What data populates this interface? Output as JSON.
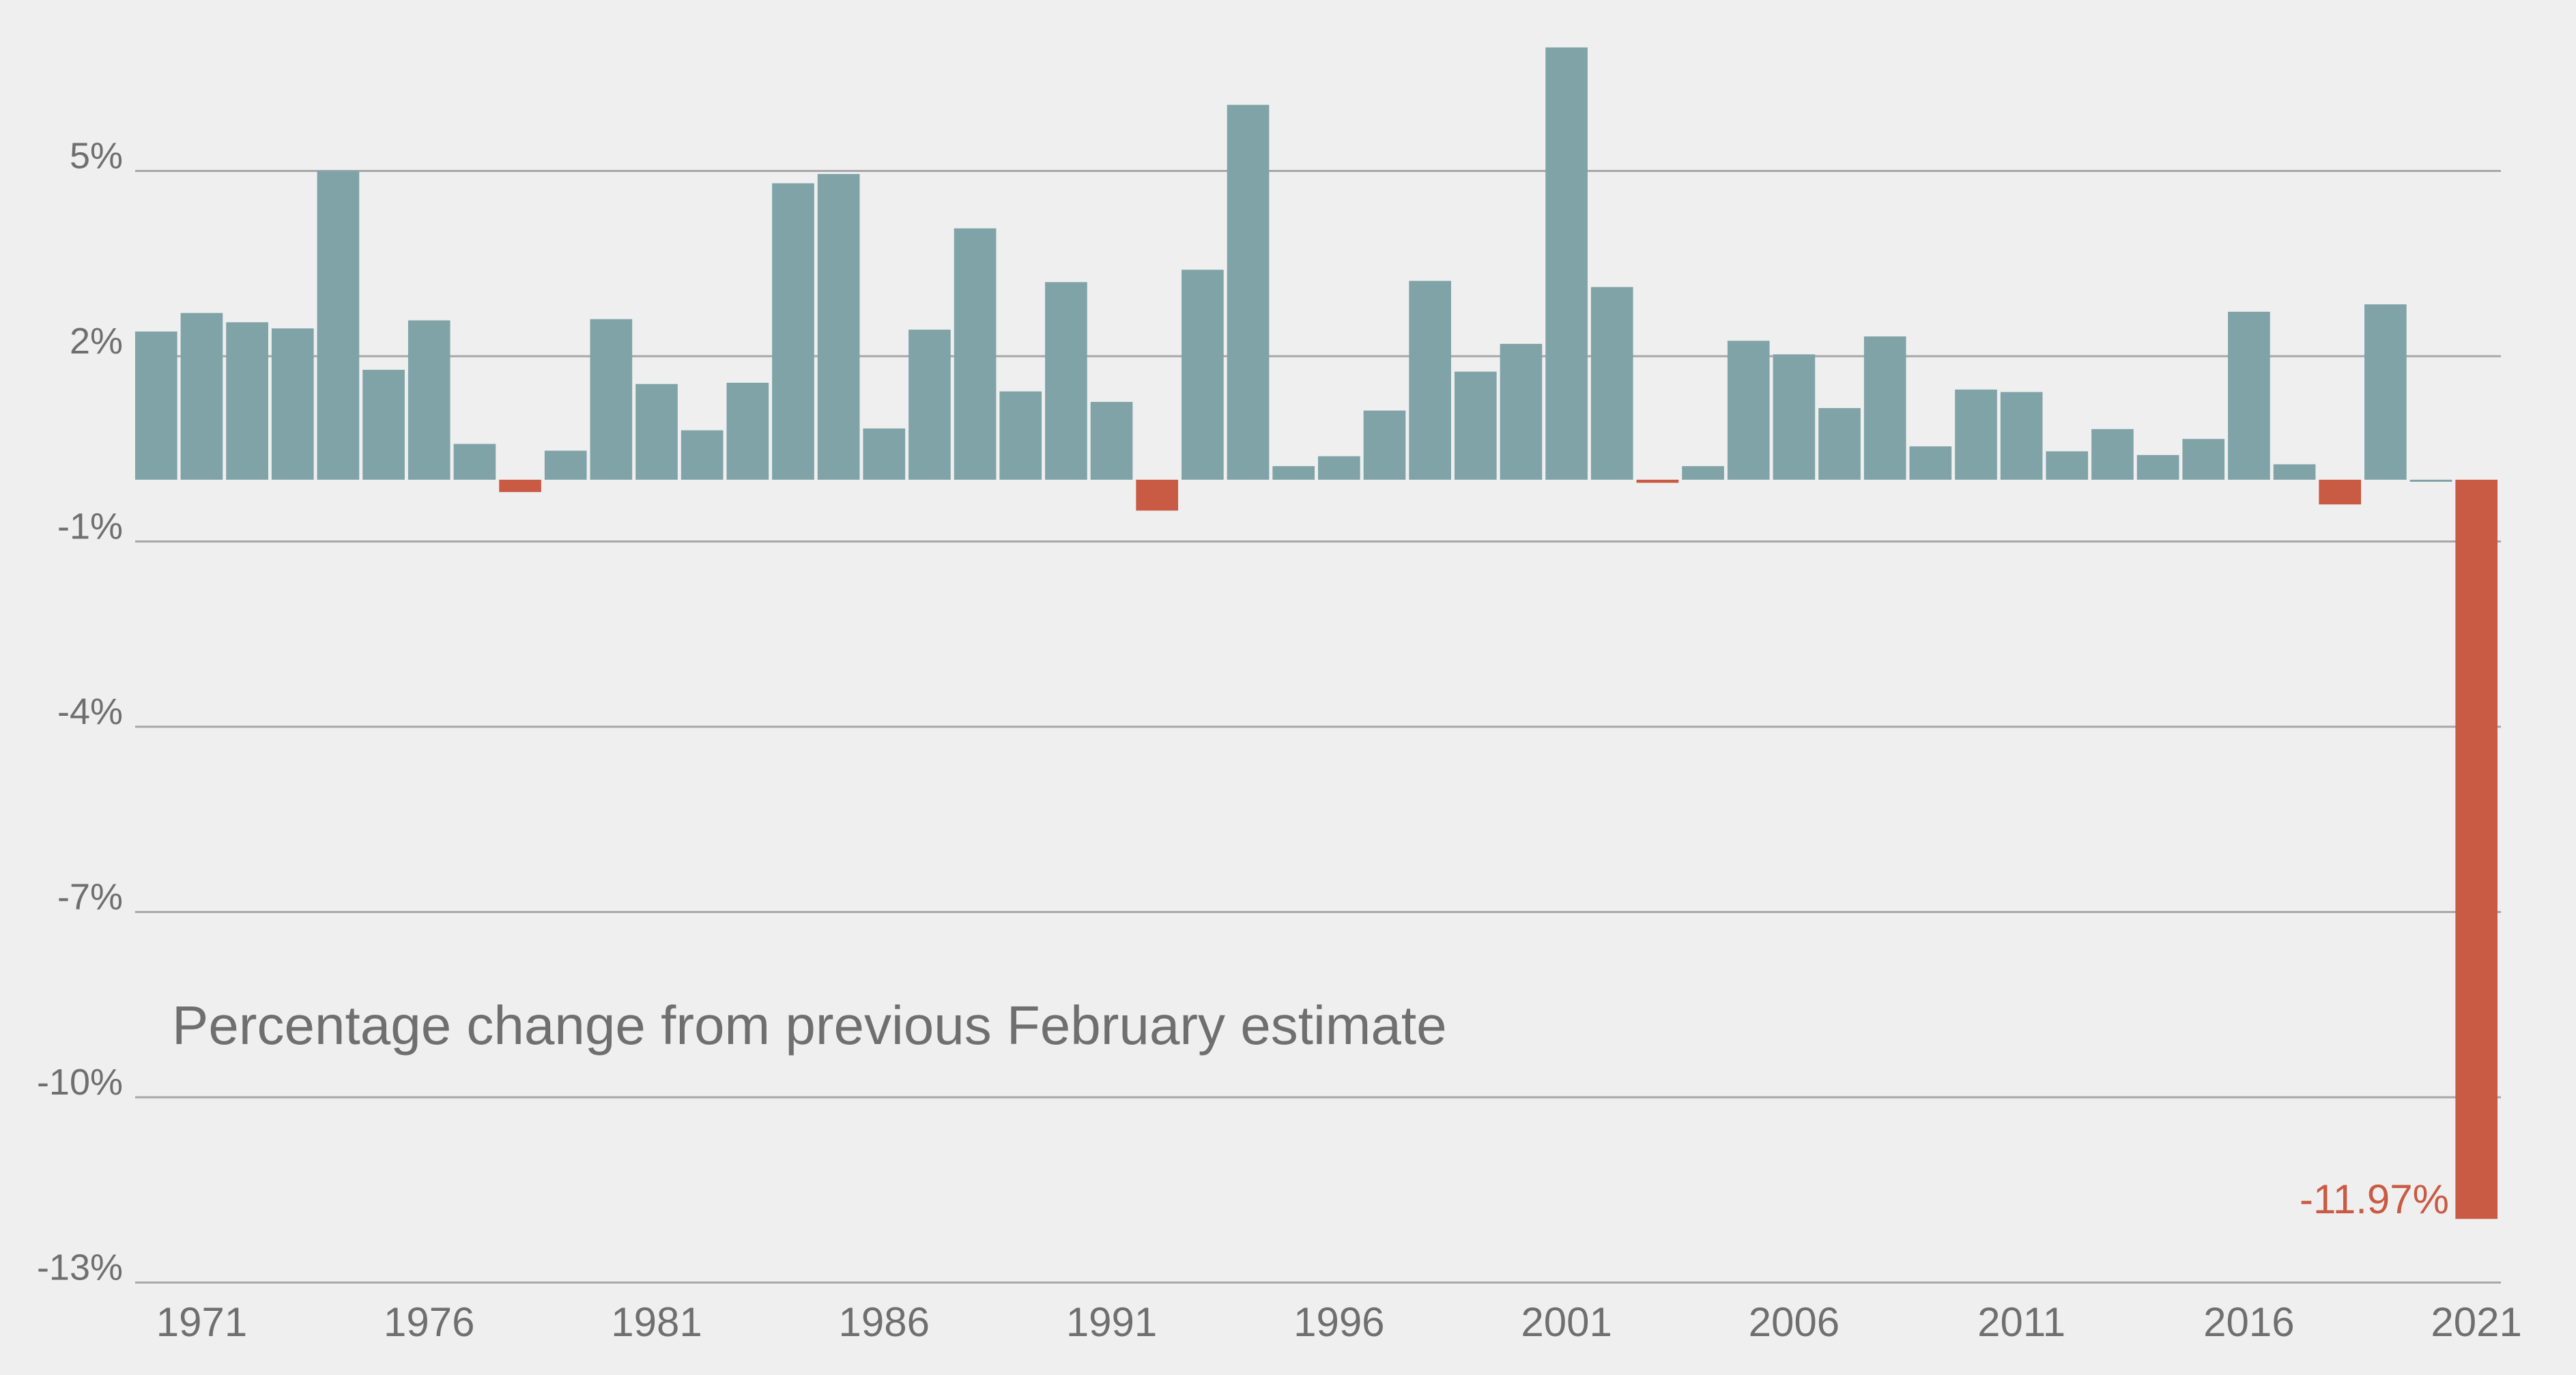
{
  "chart_data": {
    "type": "bar",
    "title": "",
    "annotation": "Percentage change from previous February estimate",
    "xlabel": "",
    "ylabel": "",
    "ylim": [
      -13,
      8
    ],
    "y_ticks": [
      5,
      2,
      -1,
      -4,
      -7,
      -10,
      -13
    ],
    "y_tick_labels": [
      "5%",
      "2%",
      "-1%",
      "-4%",
      "-7%",
      "-10%",
      "-13%"
    ],
    "x_tick_labels": [
      "1971",
      "1976",
      "1981",
      "1986",
      "1991",
      "1996",
      "2001",
      "2006",
      "2011",
      "2016",
      "2021"
    ],
    "x_tick_years": [
      1971,
      1976,
      1981,
      1986,
      1991,
      1996,
      2001,
      2006,
      2011,
      2016,
      2021
    ],
    "grid": "horizontal",
    "categories": [
      1970,
      1971,
      1972,
      1973,
      1974,
      1975,
      1976,
      1977,
      1978,
      1979,
      1980,
      1981,
      1982,
      1983,
      1984,
      1985,
      1986,
      1987,
      1988,
      1989,
      1990,
      1991,
      1992,
      1993,
      1994,
      1995,
      1996,
      1997,
      1998,
      1999,
      2000,
      2001,
      2002,
      2003,
      2004,
      2005,
      2006,
      2007,
      2008,
      2009,
      2010,
      2011,
      2012,
      2013,
      2014,
      2015,
      2016,
      2017,
      2018,
      2019,
      2020,
      2021
    ],
    "values": [
      2.4,
      2.7,
      2.55,
      2.45,
      5.0,
      1.78,
      2.58,
      0.58,
      -0.2,
      0.47,
      2.6,
      1.55,
      0.8,
      1.57,
      4.8,
      4.95,
      0.83,
      2.43,
      4.07,
      1.43,
      3.2,
      1.26,
      -0.5,
      3.4,
      6.07,
      0.22,
      0.38,
      1.12,
      3.22,
      1.75,
      2.2,
      7.0,
      3.12,
      -0.05,
      0.22,
      2.25,
      2.03,
      1.16,
      2.32,
      0.54,
      1.46,
      1.42,
      0.46,
      0.82,
      0.4,
      0.66,
      2.72,
      0.25,
      -0.4,
      2.84,
      0.0,
      -11.97
    ],
    "value_label": "-11.97%",
    "colors": {
      "positive": "#7fa3a7",
      "negative": "#c95a43",
      "grid": "#a7a7a7",
      "text": "#6f6f6f",
      "background": "#efefef"
    }
  }
}
